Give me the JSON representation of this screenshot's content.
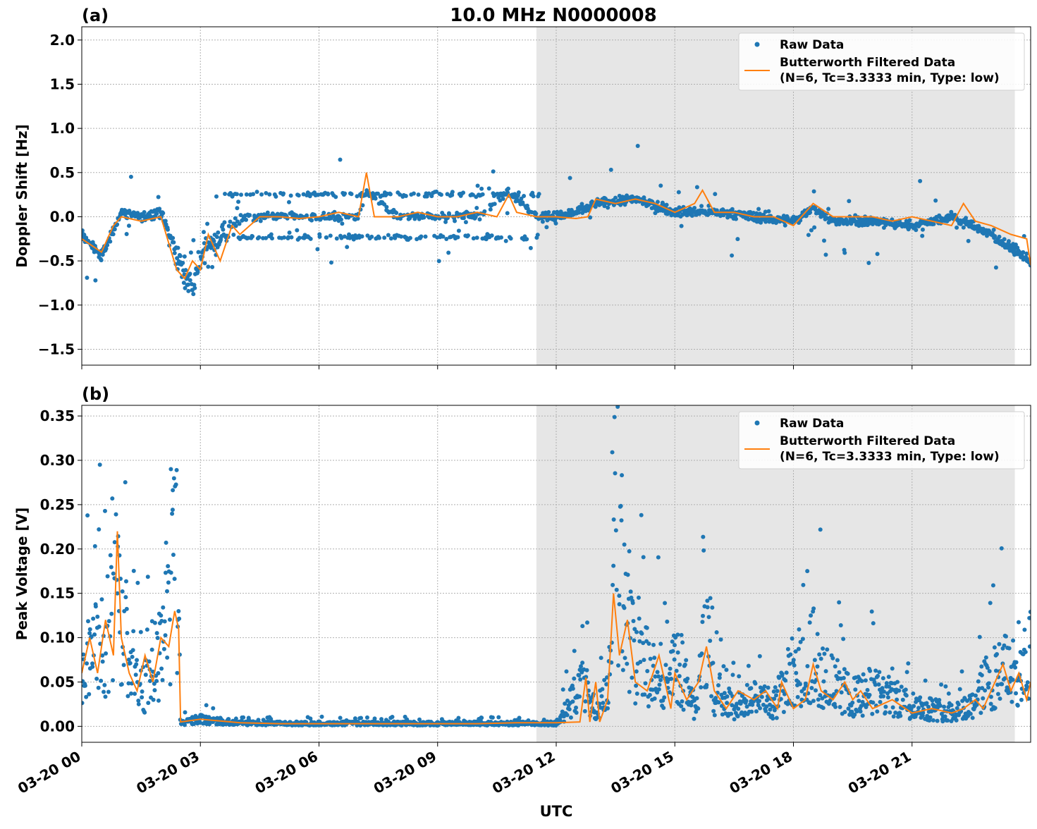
{
  "figure_title": "10.0 MHz N0000008",
  "xlabel": "UTC",
  "x_ticks": [
    "03-20 00",
    "03-20 03",
    "03-20 06",
    "03-20 09",
    "03-20 12",
    "03-20 15",
    "03-20 18",
    "03-20 21"
  ],
  "legend": {
    "raw": "Raw Data",
    "filtered_line1": "Butterworth Filtered Data",
    "filtered_line2": "(N=6, Tc=3.3333 min, Type: low)"
  },
  "colors": {
    "raw": "#1f77b4",
    "filtered": "#ff7f0e",
    "shade": "#e6e6e6",
    "grid": "#b0b0b0"
  },
  "chart_data": [
    {
      "type": "scatter",
      "panel_label": "(a)",
      "ylabel": "Doppler Shift [Hz]",
      "xlim_hours": [
        0,
        24
      ],
      "ylim": [
        -1.68,
        2.15
      ],
      "yticks": [
        -1.5,
        -1.0,
        -0.5,
        0.0,
        0.5,
        1.0,
        1.5,
        2.0
      ],
      "ytick_labels": [
        "−1.5",
        "−1.0",
        "−0.5",
        "0.0",
        "0.5",
        "1.0",
        "1.5",
        "2.0"
      ],
      "grid": true,
      "legend_position": "top-right",
      "shaded_region_hours": [
        11.5,
        23.6
      ],
      "series": [
        {
          "name": "Raw Data",
          "style": "points",
          "x_hours": [
            0,
            0.5,
            1,
            1.5,
            2,
            2.3,
            2.5,
            2.8,
            3,
            3.5,
            4,
            5,
            6,
            7,
            7.2,
            8,
            9,
            10,
            10.8,
            11.5,
            12,
            12.5,
            13,
            14,
            15,
            16,
            17,
            18,
            18.5,
            19,
            20,
            21,
            22,
            23,
            24
          ],
          "y": [
            -0.2,
            -0.45,
            0.05,
            0.0,
            0.05,
            -0.3,
            -0.55,
            -0.75,
            -0.5,
            -0.2,
            0.0,
            0.0,
            0.0,
            0.0,
            0.3,
            0.0,
            0.0,
            0.0,
            0.3,
            0.0,
            0.0,
            0.05,
            0.15,
            0.2,
            0.05,
            0.05,
            0.0,
            -0.05,
            0.1,
            -0.05,
            -0.05,
            -0.1,
            0.0,
            -0.2,
            -0.5
          ]
        },
        {
          "name": "Butterworth Filtered Data",
          "style": "line",
          "x_hours": [
            0,
            0.5,
            0.8,
            1,
            1.5,
            2,
            2.2,
            2.4,
            2.6,
            2.8,
            3,
            3.2,
            3.5,
            3.8,
            4,
            4.5,
            5,
            5.5,
            6,
            6.5,
            7,
            7.2,
            7.4,
            8,
            8.5,
            9,
            9.5,
            10,
            10.5,
            10.8,
            11,
            11.5,
            12,
            12.5,
            12.8,
            13,
            13.5,
            14,
            14.5,
            15,
            15.5,
            15.7,
            16,
            16.5,
            17,
            17.5,
            18,
            18.5,
            19,
            19.5,
            20,
            20.5,
            21,
            21.5,
            22,
            22.3,
            22.6,
            23,
            23.5,
            23.9,
            24
          ],
          "y": [
            -0.25,
            -0.4,
            -0.1,
            0.0,
            -0.05,
            0.0,
            -0.3,
            -0.6,
            -0.7,
            -0.5,
            -0.6,
            -0.2,
            -0.5,
            -0.1,
            -0.2,
            0.0,
            0.0,
            -0.02,
            0.0,
            0.05,
            0.0,
            0.5,
            0.0,
            0.0,
            0.05,
            0.0,
            0.0,
            0.05,
            0.0,
            0.25,
            0.05,
            0.0,
            0.0,
            -0.02,
            0.0,
            0.2,
            0.15,
            0.2,
            0.15,
            0.05,
            0.15,
            0.3,
            0.05,
            0.05,
            0.0,
            0.0,
            -0.1,
            0.15,
            0.0,
            0.0,
            0.0,
            -0.05,
            0.0,
            -0.05,
            -0.1,
            0.15,
            -0.05,
            -0.1,
            -0.2,
            -0.25,
            -0.55
          ]
        }
      ]
    },
    {
      "type": "scatter",
      "panel_label": "(b)",
      "ylabel": "Peak Voltage [V]",
      "xlim_hours": [
        0,
        24
      ],
      "ylim": [
        -0.018,
        0.362
      ],
      "yticks": [
        0.0,
        0.05,
        0.1,
        0.15,
        0.2,
        0.25,
        0.3,
        0.35
      ],
      "ytick_labels": [
        "0.00",
        "0.05",
        "0.10",
        "0.15",
        "0.20",
        "0.25",
        "0.30",
        "0.35"
      ],
      "grid": true,
      "legend_position": "top-right",
      "shaded_region_hours": [
        11.5,
        23.6
      ],
      "series": [
        {
          "name": "Raw Data",
          "style": "points",
          "x_hours": [
            0,
            0.3,
            0.6,
            0.9,
            1.2,
            1.5,
            1.8,
            2.1,
            2.4,
            2.5,
            3,
            4,
            5,
            6,
            7,
            8,
            9,
            10,
            11,
            12,
            12.7,
            13,
            13.3,
            13.5,
            13.7,
            14,
            14.5,
            15,
            15.5,
            15.8,
            16,
            16.5,
            17,
            17.5,
            18,
            18.5,
            19,
            19.5,
            20,
            21,
            22,
            22.5,
            23,
            23.5,
            24
          ],
          "y": [
            0.08,
            0.1,
            0.12,
            0.2,
            0.1,
            0.05,
            0.08,
            0.12,
            0.25,
            0.005,
            0.01,
            0.005,
            0.003,
            0.003,
            0.003,
            0.003,
            0.003,
            0.003,
            0.003,
            0.004,
            0.06,
            0.02,
            0.05,
            0.3,
            0.2,
            0.1,
            0.07,
            0.1,
            0.03,
            0.12,
            0.05,
            0.03,
            0.04,
            0.03,
            0.08,
            0.1,
            0.06,
            0.04,
            0.05,
            0.03,
            0.02,
            0.03,
            0.07,
            0.08,
            0.1
          ]
        },
        {
          "name": "Butterworth Filtered Data",
          "style": "line",
          "x_hours": [
            0,
            0.2,
            0.4,
            0.6,
            0.8,
            0.9,
            1.0,
            1.2,
            1.4,
            1.6,
            1.8,
            2.0,
            2.2,
            2.35,
            2.45,
            2.5,
            3,
            3.5,
            4,
            5,
            6,
            7,
            8,
            9,
            10,
            11,
            12,
            12.6,
            12.75,
            12.85,
            13,
            13.1,
            13.3,
            13.45,
            13.6,
            13.8,
            14,
            14.3,
            14.6,
            14.9,
            15,
            15.3,
            15.6,
            15.8,
            16,
            16.3,
            16.6,
            17,
            17.3,
            17.6,
            17.7,
            18,
            18.3,
            18.5,
            18.7,
            19,
            19.3,
            19.5,
            19.7,
            20,
            20.5,
            21,
            21.5,
            22,
            22.3,
            22.6,
            22.8,
            23,
            23.3,
            23.5,
            23.7,
            23.9,
            24
          ],
          "y": [
            0.06,
            0.1,
            0.06,
            0.12,
            0.08,
            0.22,
            0.1,
            0.06,
            0.04,
            0.08,
            0.05,
            0.1,
            0.09,
            0.13,
            0.11,
            0.005,
            0.008,
            0.006,
            0.004,
            0.003,
            0.003,
            0.003,
            0.003,
            0.003,
            0.003,
            0.004,
            0.004,
            0.005,
            0.055,
            0.005,
            0.05,
            0.005,
            0.03,
            0.15,
            0.08,
            0.12,
            0.05,
            0.04,
            0.08,
            0.02,
            0.06,
            0.03,
            0.05,
            0.09,
            0.04,
            0.02,
            0.04,
            0.03,
            0.04,
            0.02,
            0.05,
            0.02,
            0.03,
            0.07,
            0.04,
            0.03,
            0.05,
            0.03,
            0.04,
            0.02,
            0.03,
            0.015,
            0.02,
            0.015,
            0.02,
            0.03,
            0.02,
            0.04,
            0.07,
            0.04,
            0.06,
            0.03,
            0.05
          ]
        }
      ]
    }
  ]
}
